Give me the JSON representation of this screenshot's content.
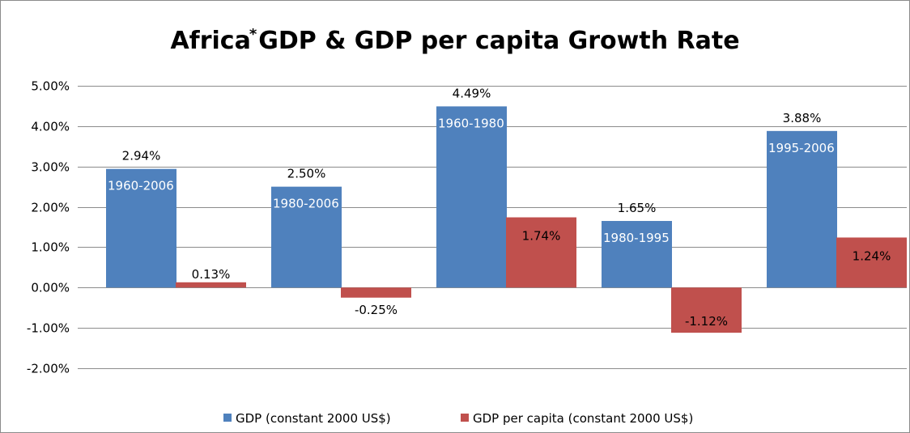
{
  "colors": {
    "gdp": "#4F81BD",
    "gdp_per_capita": "#C0504D"
  },
  "chart_data": {
    "type": "bar",
    "title": "Africa",
    "title_superscript": "*",
    "title_rest": "GDP & GDP per capita Growth Rate",
    "ylim": [
      -0.02,
      0.05
    ],
    "yticks": [
      "5.00%",
      "4.00%",
      "3.00%",
      "2.00%",
      "1.00%",
      "0.00%",
      "-1.00%",
      "-2.00%"
    ],
    "ytick_values": [
      0.05,
      0.04,
      0.03,
      0.02,
      0.01,
      0.0,
      -0.01,
      -0.02
    ],
    "grid": true,
    "legend_position": "bottom",
    "categories": [
      "1960-2006",
      "1980-2006",
      "1960-1980",
      "1980-1995",
      "1995-2006"
    ],
    "category_labels_shown": [
      "1960-2006",
      "1980-2006",
      "1960-1980",
      "1980-1995",
      "1995-2006"
    ],
    "series": [
      {
        "name": "GDP (constant 2000 US$)",
        "values": [
          0.0294,
          0.025,
          0.0449,
          0.0165,
          0.0388
        ],
        "labels": [
          "2.94%",
          "2.50%",
          "4.49%",
          "1.65%",
          "3.88%"
        ]
      },
      {
        "name": "GDP per capita (constant 2000 US$)",
        "values": [
          0.0013,
          -0.0025,
          0.0174,
          -0.0112,
          0.0124
        ],
        "labels": [
          "0.13%",
          "-0.25%",
          "1.74%",
          "-1.12%",
          "1.24%"
        ]
      }
    ]
  }
}
